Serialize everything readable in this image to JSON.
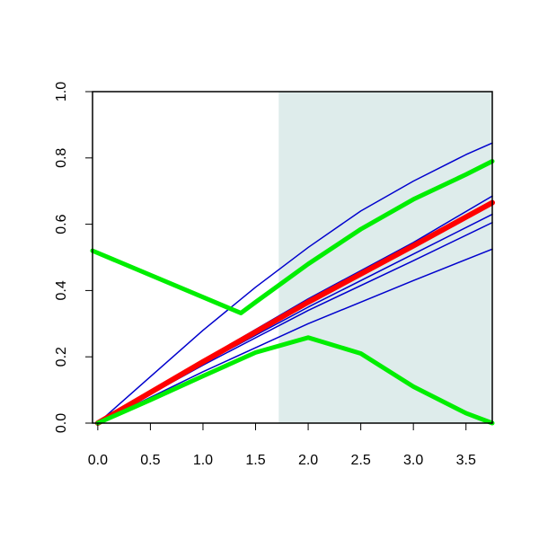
{
  "chart_data": {
    "type": "line",
    "title": "",
    "xlabel": "",
    "ylabel": "",
    "xlim": [
      -0.05,
      3.75
    ],
    "ylim": [
      0.0,
      1.0
    ],
    "x_ticks": [
      0.0,
      0.5,
      1.0,
      1.5,
      2.0,
      2.5,
      3.0,
      3.5
    ],
    "y_ticks": [
      0.0,
      0.2,
      0.4,
      0.6,
      0.8,
      1.0
    ],
    "x_tick_labels": [
      "0.0",
      "0.5",
      "1.0",
      "1.5",
      "2.0",
      "2.5",
      "3.0",
      "3.5"
    ],
    "y_tick_labels": [
      "0.0",
      "0.2",
      "0.4",
      "0.6",
      "0.8",
      "1.0"
    ],
    "grid": false,
    "legend": "none",
    "shaded_region": {
      "x": [
        1.72,
        3.75
      ],
      "color": "#deeceb"
    },
    "series": [
      {
        "color": "#0000cd",
        "width": 1.5,
        "x": [
          0,
          0.5,
          1.0,
          1.5,
          2.0,
          2.5,
          3.0,
          3.5,
          3.75
        ],
        "y": [
          0.0,
          0.14,
          0.28,
          0.41,
          0.53,
          0.64,
          0.73,
          0.81,
          0.845
        ]
      },
      {
        "color": "#0000cd",
        "width": 1.5,
        "x": [
          0,
          1.0,
          2.0,
          3.0,
          3.75
        ],
        "y": [
          0.0,
          0.19,
          0.375,
          0.545,
          0.685
        ]
      },
      {
        "color": "#0000cd",
        "width": 1.5,
        "x": [
          0,
          1.0,
          2.0,
          3.0,
          3.75
        ],
        "y": [
          0.0,
          0.18,
          0.35,
          0.51,
          0.63
        ]
      },
      {
        "color": "#0000cd",
        "width": 1.5,
        "x": [
          0,
          1.0,
          2.0,
          3.0,
          3.75
        ],
        "y": [
          0.0,
          0.175,
          0.34,
          0.49,
          0.605
        ]
      },
      {
        "color": "#0000cd",
        "width": 1.5,
        "x": [
          0,
          1.0,
          2.0,
          3.0,
          3.75
        ],
        "y": [
          0.0,
          0.155,
          0.3,
          0.43,
          0.525
        ]
      },
      {
        "color": "#ff0000",
        "width": 6,
        "x": [
          0,
          1.0,
          2.0,
          3.0,
          3.75
        ],
        "y": [
          0.0,
          0.185,
          0.365,
          0.535,
          0.665
        ]
      },
      {
        "color": "#00ee00",
        "width": 5,
        "x": [
          0,
          0.5,
          1.0,
          1.5,
          2.0,
          2.5,
          3.0,
          3.5,
          3.75
        ],
        "y": [
          0.0,
          0.07,
          0.142,
          0.213,
          0.258,
          0.21,
          0.11,
          0.03,
          0.0
        ]
      },
      {
        "color": "#00ee00",
        "width": 5,
        "x": [
          -0.05,
          1.36,
          1.5,
          2.0,
          2.5,
          3.0,
          3.5,
          3.75
        ],
        "y": [
          0.52,
          0.332,
          0.365,
          0.48,
          0.585,
          0.675,
          0.75,
          0.79
        ]
      }
    ]
  }
}
